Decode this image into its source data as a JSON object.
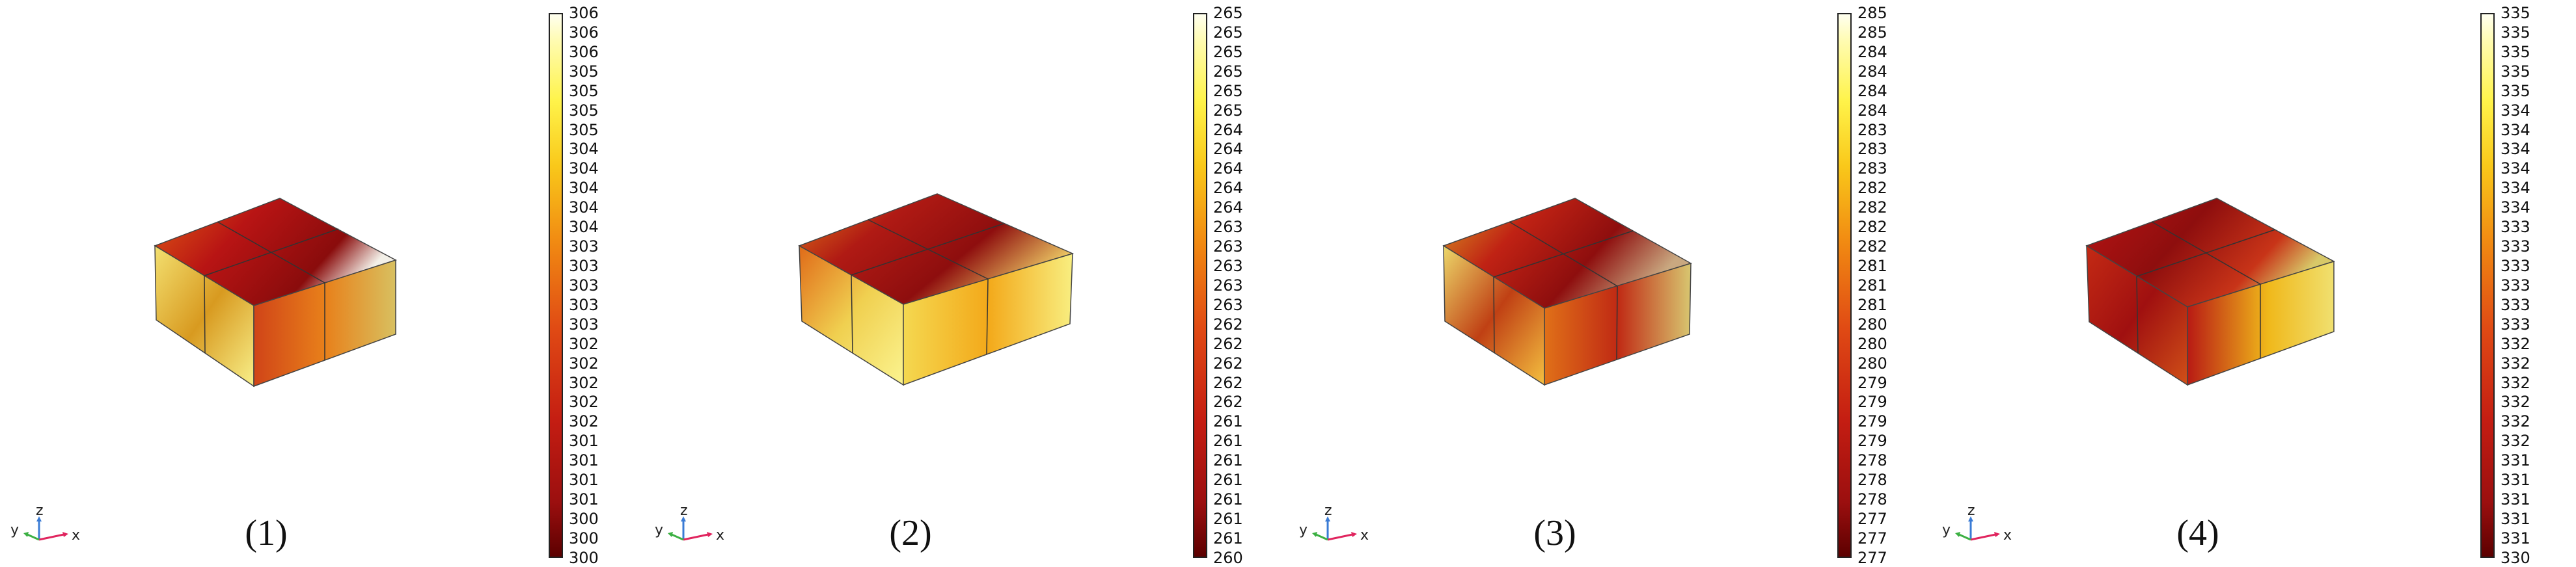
{
  "panels": [
    {
      "label": "(1)",
      "colorbar_ticks": [
        "306",
        "306",
        "306",
        "305",
        "305",
        "305",
        "305",
        "304",
        "304",
        "304",
        "304",
        "304",
        "303",
        "303",
        "303",
        "303",
        "303",
        "302",
        "302",
        "302",
        "302",
        "302",
        "301",
        "301",
        "301",
        "301",
        "300",
        "300",
        "300"
      ]
    },
    {
      "label": "(2)",
      "colorbar_ticks": [
        "265",
        "265",
        "265",
        "265",
        "265",
        "265",
        "264",
        "264",
        "264",
        "264",
        "264",
        "263",
        "263",
        "263",
        "263",
        "263",
        "262",
        "262",
        "262",
        "262",
        "262",
        "261",
        "261",
        "261",
        "261",
        "261",
        "261",
        "261",
        "260"
      ]
    },
    {
      "label": "(3)",
      "colorbar_ticks": [
        "285",
        "285",
        "284",
        "284",
        "284",
        "284",
        "283",
        "283",
        "283",
        "282",
        "282",
        "282",
        "282",
        "281",
        "281",
        "281",
        "280",
        "280",
        "280",
        "279",
        "279",
        "279",
        "279",
        "278",
        "278",
        "278",
        "277",
        "277",
        "277"
      ]
    },
    {
      "label": "(4)",
      "colorbar_ticks": [
        "335",
        "335",
        "335",
        "335",
        "335",
        "334",
        "334",
        "334",
        "334",
        "334",
        "334",
        "333",
        "333",
        "333",
        "333",
        "333",
        "333",
        "332",
        "332",
        "332",
        "332",
        "332",
        "332",
        "331",
        "331",
        "331",
        "331",
        "331",
        "330"
      ]
    }
  ],
  "axis_triad": {
    "x": "x",
    "y": "y",
    "z": "z"
  },
  "colors": {
    "axis_x": "#e0245e",
    "axis_y": "#3cb043",
    "axis_z": "#3a7bd5",
    "colormap_low": "#5c0000",
    "colormap_high": "#fffff0"
  }
}
